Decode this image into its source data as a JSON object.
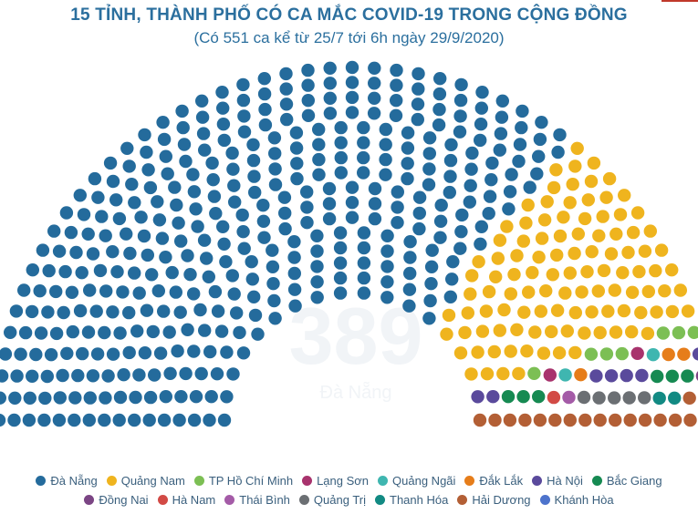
{
  "header": {
    "title": "15 TỈNH, THÀNH PHỐ CÓ CA MẮC COVID-19 TRONG CỘNG ĐỒNG",
    "subtitle": "(Có 551 ca kể từ 25/7 tới 6h ngày 29/9/2020)"
  },
  "center": {
    "number": "389",
    "label": "Đà Nẵng"
  },
  "chart_data": {
    "type": "parliament",
    "total": 551,
    "categories": [
      {
        "name": "Đà Nẵng",
        "value": 389,
        "color": "#246b9c"
      },
      {
        "name": "Quảng Nam",
        "value": 107,
        "color": "#efb41e"
      },
      {
        "name": "TP Hồ Chí Minh",
        "value": 7,
        "color": "#7cbf54"
      },
      {
        "name": "Lạng Sơn",
        "value": 2,
        "color": "#a8336d"
      },
      {
        "name": "Quảng Ngãi",
        "value": 2,
        "color": "#3fb6b0"
      },
      {
        "name": "Đắk Lắk",
        "value": 3,
        "color": "#e67d1a"
      },
      {
        "name": "Hà Nội",
        "value": 7,
        "color": "#5a4a9c"
      },
      {
        "name": "Bắc Giang",
        "value": 6,
        "color": "#168a52"
      },
      {
        "name": "Đồng Nai",
        "value": 1,
        "color": "#7b4584"
      },
      {
        "name": "Hà Nam",
        "value": 1,
        "color": "#d24a45"
      },
      {
        "name": "Thái Bình",
        "value": 1,
        "color": "#a45ba7"
      },
      {
        "name": "Quảng Trị",
        "value": 5,
        "color": "#6b6f73"
      },
      {
        "name": "Thanh Hóa",
        "value": 2,
        "color": "#128a83"
      },
      {
        "name": "Hải Dương",
        "value": 17,
        "color": "#b35f35"
      },
      {
        "name": "Khánh Hòa",
        "value": 1,
        "color": "#4d73cc"
      }
    ]
  }
}
